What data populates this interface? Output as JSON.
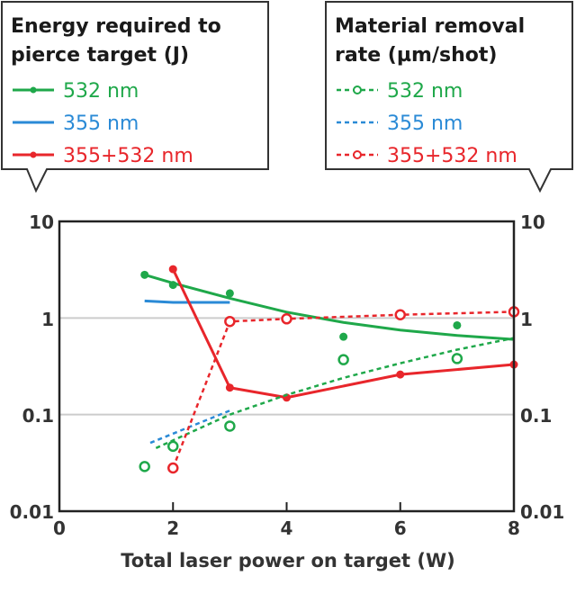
{
  "chart_data": {
    "type": "line",
    "xlabel": "Total laser power on target (W)",
    "xlim": [
      0,
      8
    ],
    "x_ticks": [
      "0",
      "2",
      "4",
      "6",
      "8"
    ],
    "y_scale": "log",
    "ylim": [
      0.01,
      10
    ],
    "y_ticks_left": [
      "10",
      "1",
      "0.1",
      "0.01"
    ],
    "y_ticks_right": [
      "10",
      "1",
      "0.1",
      "0.01"
    ],
    "grid": "horizontal at 1 and 0.1",
    "legend_left": {
      "title_lines": [
        "Energy required to",
        "pierce target (J)"
      ],
      "entries": [
        "532 nm",
        "355 nm",
        "355+532 nm"
      ]
    },
    "legend_right": {
      "title_lines": [
        "Material removal",
        "rate (µm/shot)"
      ],
      "entries": [
        "532 nm",
        "355 nm",
        "355+532 nm"
      ]
    },
    "colors": {
      "green": "#1fa84a",
      "blue": "#2a8ad6",
      "red": "#e8262b",
      "grid": "#cccccc"
    },
    "series": [
      {
        "name": "532 nm",
        "group": "energy",
        "color": "green",
        "style": "solid",
        "marker": "filled",
        "points": [
          [
            1.5,
            2.8
          ],
          [
            2,
            2.2
          ],
          [
            3,
            1.8
          ],
          [
            5,
            0.64
          ],
          [
            7,
            0.84
          ]
        ],
        "fit": [
          [
            1.5,
            2.8
          ],
          [
            2,
            2.3
          ],
          [
            3,
            1.6
          ],
          [
            4,
            1.15
          ],
          [
            5,
            0.9
          ],
          [
            6,
            0.75
          ],
          [
            7,
            0.66
          ],
          [
            8,
            0.6
          ]
        ]
      },
      {
        "name": "355 nm",
        "group": "energy",
        "color": "blue",
        "style": "solid",
        "marker": "none",
        "points": [],
        "fit": [
          [
            1.5,
            1.5
          ],
          [
            2,
            1.45
          ],
          [
            3,
            1.45
          ]
        ]
      },
      {
        "name": "355+532 nm",
        "group": "energy",
        "color": "red",
        "style": "solid",
        "marker": "filled",
        "points": [
          [
            2,
            3.2
          ],
          [
            3,
            0.19
          ],
          [
            4,
            0.15
          ],
          [
            6,
            0.26
          ],
          [
            8,
            0.33
          ]
        ],
        "fit": [
          [
            2,
            3.2
          ],
          [
            3,
            0.19
          ],
          [
            4,
            0.15
          ],
          [
            6,
            0.26
          ],
          [
            8,
            0.33
          ]
        ]
      },
      {
        "name": "532 nm",
        "group": "removal",
        "color": "green",
        "style": "dashed",
        "marker": "open",
        "points": [
          [
            1.5,
            0.029
          ],
          [
            2,
            0.047
          ],
          [
            3,
            0.076
          ],
          [
            5,
            0.37
          ],
          [
            7,
            0.38
          ]
        ],
        "fit": [
          [
            1.7,
            0.045
          ],
          [
            3,
            0.1
          ],
          [
            4,
            0.16
          ],
          [
            5,
            0.24
          ],
          [
            6,
            0.34
          ],
          [
            7,
            0.47
          ],
          [
            8,
            0.62
          ]
        ]
      },
      {
        "name": "355 nm",
        "group": "removal",
        "color": "blue",
        "style": "dashed",
        "marker": "none",
        "points": [],
        "fit": [
          [
            1.6,
            0.051
          ],
          [
            3,
            0.11
          ]
        ]
      },
      {
        "name": "355+532 nm",
        "group": "removal",
        "color": "red",
        "style": "dashed",
        "marker": "open",
        "points": [
          [
            2,
            0.028
          ],
          [
            3,
            0.92
          ],
          [
            4,
            0.98
          ],
          [
            6,
            1.08
          ],
          [
            8,
            1.16
          ]
        ],
        "fit": [
          [
            2,
            0.028
          ],
          [
            3,
            0.92
          ],
          [
            4,
            0.98
          ],
          [
            6,
            1.08
          ],
          [
            8,
            1.16
          ]
        ]
      }
    ]
  }
}
